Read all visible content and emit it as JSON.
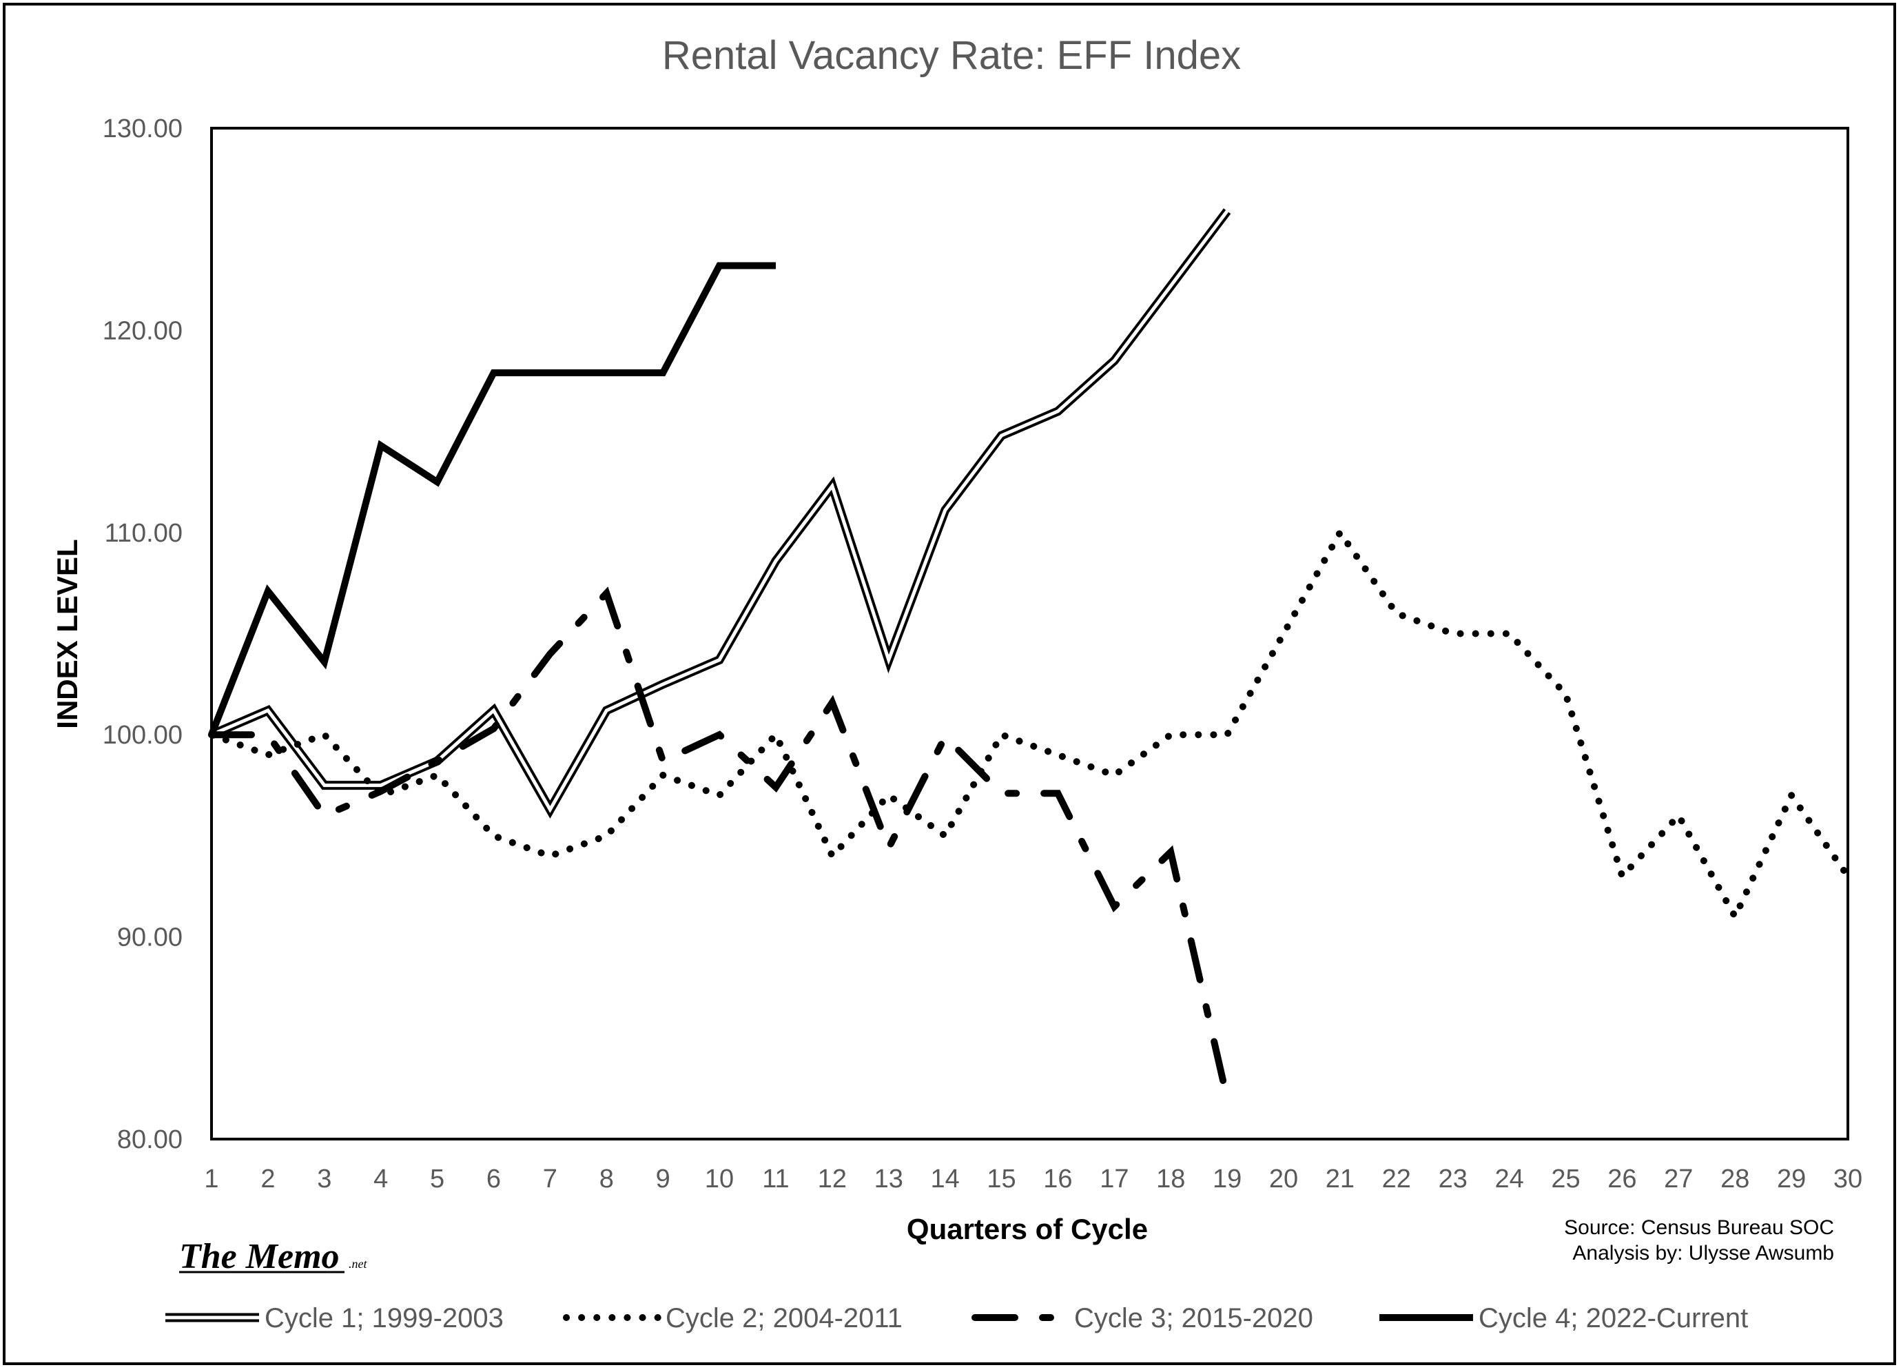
{
  "chart_data": {
    "type": "line",
    "title": "Rental Vacancy Rate: EFF  Index",
    "xlabel": "Quarters of Cycle",
    "ylabel": "INDEX LEVEL",
    "xlim": [
      1,
      30
    ],
    "ylim": [
      80,
      130
    ],
    "x_ticks": [
      1,
      2,
      3,
      4,
      5,
      6,
      7,
      8,
      9,
      10,
      11,
      12,
      13,
      14,
      15,
      16,
      17,
      18,
      19,
      20,
      21,
      22,
      23,
      24,
      25,
      26,
      27,
      28,
      29,
      30
    ],
    "y_ticks": [
      "80.00",
      "90.00",
      "100.00",
      "110.00",
      "120.00",
      "130.00"
    ],
    "grid": false,
    "legend_position": "bottom",
    "series": [
      {
        "name": "Cycle 1; 1999-2003",
        "style": "double-line",
        "color": "#000000",
        "x": [
          1,
          2,
          3,
          4,
          5,
          6,
          7,
          8,
          9,
          10,
          11,
          12,
          13,
          14,
          15,
          16,
          17,
          18,
          19
        ],
        "values": [
          100.0,
          101.2,
          97.5,
          97.5,
          98.7,
          101.2,
          96.3,
          101.2,
          102.5,
          103.7,
          108.6,
          112.3,
          103.7,
          111.1,
          114.8,
          116.0,
          118.5,
          122.2,
          125.9
        ]
      },
      {
        "name": "Cycle 2; 2004-2011",
        "style": "dotted",
        "color": "#000000",
        "x": [
          1,
          2,
          3,
          4,
          5,
          6,
          7,
          8,
          9,
          10,
          11,
          12,
          13,
          14,
          15,
          16,
          17,
          18,
          19,
          20,
          21,
          22,
          23,
          24,
          25,
          26,
          27,
          28,
          29,
          30
        ],
        "values": [
          100.0,
          99.0,
          100.0,
          97.0,
          98.0,
          95.0,
          94.0,
          95.0,
          98.0,
          97.0,
          100.0,
          94.0,
          97.0,
          95.0,
          100.0,
          99.0,
          98.0,
          100.0,
          100.0,
          105.0,
          110.0,
          106.0,
          105.0,
          105.0,
          102.0,
          93.0,
          96.0,
          91.0,
          97.0,
          93.0
        ]
      },
      {
        "name": "Cycle 3; 2015-2020",
        "style": "dash-dot",
        "color": "#000000",
        "x": [
          1,
          2,
          3,
          4,
          5,
          6,
          7,
          8,
          9,
          10,
          11,
          12,
          13,
          14,
          15,
          16,
          17,
          18,
          19
        ],
        "values": [
          100.0,
          100.0,
          96.0,
          97.2,
          98.7,
          100.3,
          104.0,
          107.0,
          98.7,
          100.0,
          97.4,
          101.6,
          94.4,
          99.9,
          97.1,
          97.1,
          91.5,
          94.2,
          82.0
        ]
      },
      {
        "name": "Cycle 4; 2022-Current",
        "style": "thick-solid",
        "color": "#000000",
        "x": [
          1,
          2,
          3,
          4,
          5,
          6,
          7,
          8,
          9,
          10,
          11
        ],
        "values": [
          100.0,
          107.1,
          103.6,
          114.3,
          112.5,
          117.9,
          117.9,
          117.9,
          117.9,
          123.2,
          123.2
        ]
      }
    ]
  },
  "source": {
    "line1": "Source: Census Bureau SOC",
    "line2": "Analysis by: Ulysse Awsumb"
  },
  "logo": {
    "main": "The Memo",
    "sub": ".net"
  }
}
